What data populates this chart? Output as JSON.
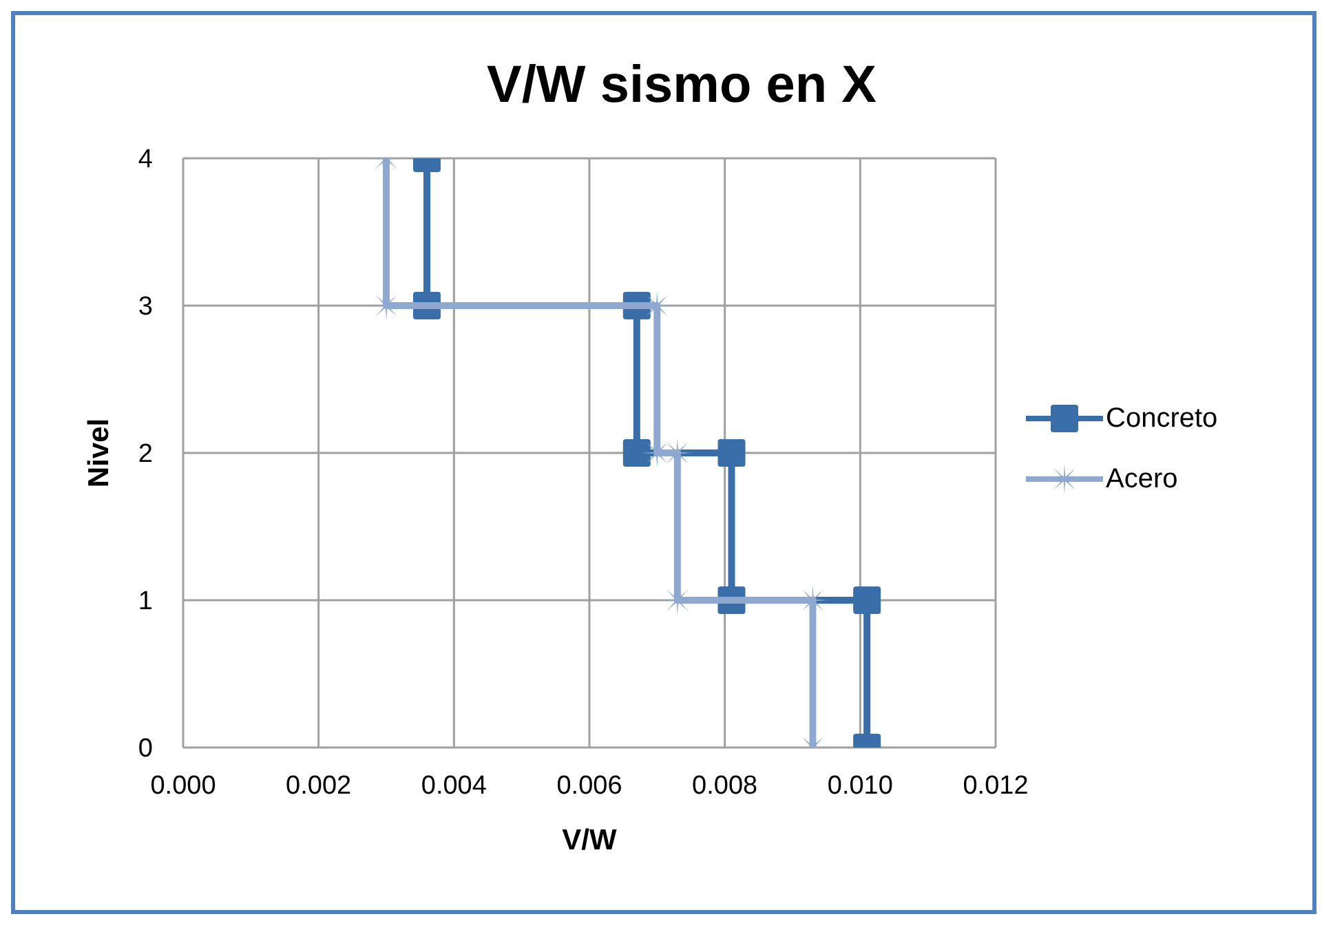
{
  "chart_data": {
    "type": "line",
    "title": "V/W sismo en X",
    "xlabel": "V/W",
    "ylabel": "Nivel",
    "series": [
      {
        "name": "Concreto",
        "color": "#3a6ea8",
        "marker": "square",
        "x": [
          0.0036,
          0.0036,
          0.0067,
          0.0067,
          0.0081,
          0.0081,
          0.0101,
          0.0101
        ],
        "values": [
          4,
          3,
          3,
          2,
          2,
          1,
          1,
          0
        ]
      },
      {
        "name": "Acero",
        "color": "#8fa8d0",
        "marker": "cross",
        "x": [
          0.003,
          0.003,
          0.007,
          0.007,
          0.0073,
          0.0073,
          0.0093,
          0.0093
        ],
        "values": [
          4,
          3,
          3,
          2,
          2,
          1,
          1,
          0
        ]
      }
    ],
    "xlim": [
      0,
      0.012
    ],
    "xticks": [
      {
        "value": 0,
        "label": "0.000"
      },
      {
        "value": 0.002,
        "label": "0.002"
      },
      {
        "value": 0.004,
        "label": "0.004"
      },
      {
        "value": 0.006,
        "label": "0.006"
      },
      {
        "value": 0.008,
        "label": "0.008"
      },
      {
        "value": 0.01,
        "label": "0.010"
      },
      {
        "value": 0.012,
        "label": "0.012"
      }
    ],
    "ylim": [
      0,
      4
    ],
    "yticks": [
      0,
      1,
      2,
      3,
      4
    ],
    "grid": true,
    "legend": "right",
    "line_style": "solid"
  }
}
